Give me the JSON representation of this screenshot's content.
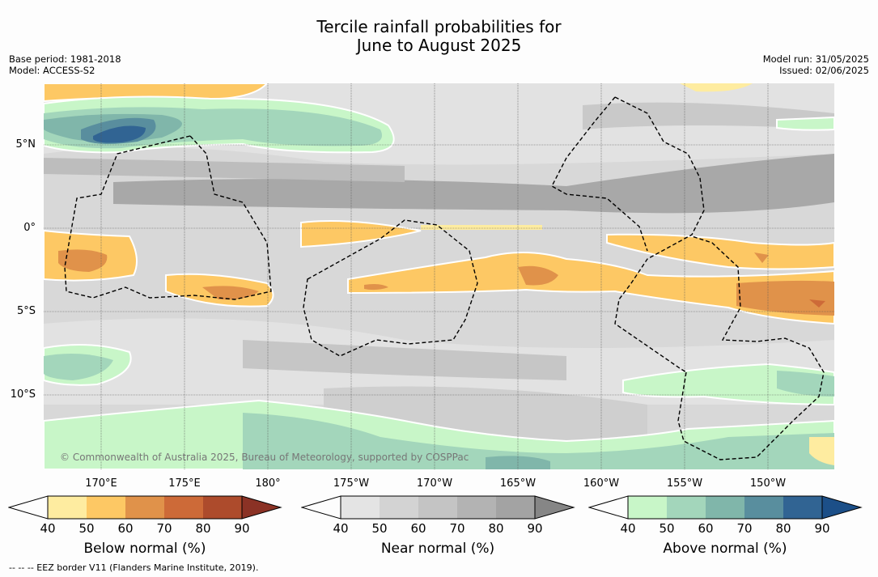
{
  "title_line1": "Tercile rainfall probabilities for",
  "title_line2": "June to August 2025",
  "base_period": "Base period: 1981-2018",
  "model": "Model: ACCESS-S2",
  "model_run": "Model run: 31/05/2025",
  "issued": "Issued: 02/06/2025",
  "credit": "© Commonwealth of Australia 2025, Bureau of Meteorology, supported by COSPPac",
  "footer": "-- -- -- EEZ border V11 (Flanders Marine Institute, 2019).",
  "lat_labels": [
    "5°N",
    "0°",
    "5°S",
    "10°S"
  ],
  "lon_labels": [
    "170°E",
    "175°E",
    "180°",
    "175°W",
    "170°W",
    "165°W",
    "160°W",
    "155°W",
    "150°W"
  ],
  "colorbars": [
    {
      "title": "Below normal (%)",
      "ticks": [
        "40",
        "50",
        "60",
        "70",
        "80",
        "90"
      ],
      "colors": [
        "#fdfdfd",
        "#feeca0",
        "#fdc864",
        "#e0924a",
        "#cd6a38",
        "#ad4b2c",
        "#8b3225"
      ]
    },
    {
      "title": "Near normal (%)",
      "ticks": [
        "40",
        "50",
        "60",
        "70",
        "80",
        "90"
      ],
      "colors": [
        "#fdfdfd",
        "#e4e4e4",
        "#d3d3d3",
        "#c4c4c4",
        "#b3b3b3",
        "#a3a3a3",
        "#868686"
      ]
    },
    {
      "title": "Above normal (%)",
      "ticks": [
        "40",
        "50",
        "60",
        "70",
        "80",
        "90"
      ],
      "colors": [
        "#fdfdfd",
        "#c8f6c8",
        "#a3d6bb",
        "#80b6aa",
        "#598e9e",
        "#316493",
        "#1c4f88"
      ]
    }
  ]
}
